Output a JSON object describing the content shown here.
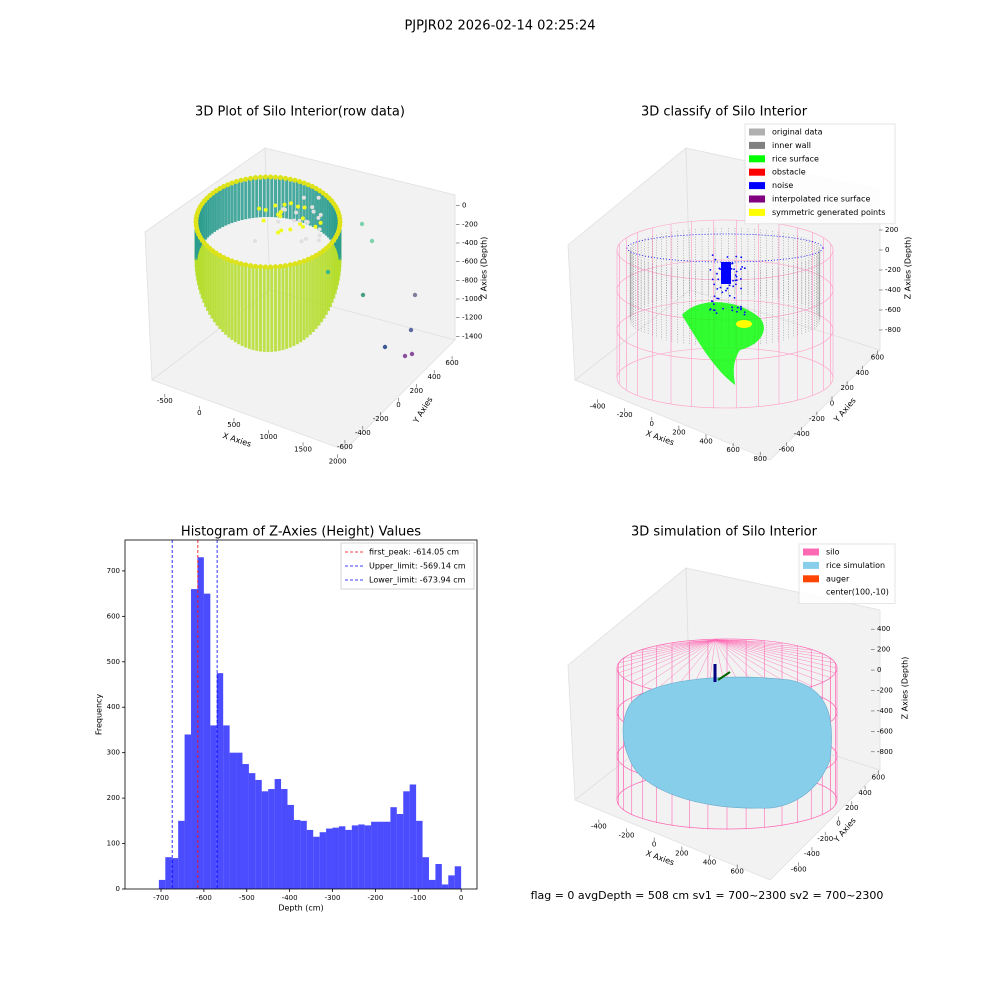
{
  "suptitle": "PJPJR02 2026-02-14 02:25:24",
  "footer": "flag = 0     avgDepth = 508 cm  sv1 = 700~2300  sv2 = 700~2300",
  "chart_data": [
    {
      "type": "scatter3d",
      "title": "3D Plot of Silo Interior(row data)",
      "xlabel": "X Axies",
      "ylabel": "Y Axies",
      "zlabel": "Z Axies (Depth)",
      "xlim": [
        -700,
        2150
      ],
      "ylim": [
        -700,
        700
      ],
      "zlim": [
        -1450,
        50
      ],
      "xticks": [
        -500,
        0,
        500,
        1000,
        1500,
        2000
      ],
      "yticks": [
        -600,
        -400,
        -200,
        0,
        200,
        400,
        600
      ],
      "zticks": [
        0,
        -200,
        -400,
        -600,
        -800,
        -1000,
        -1200,
        -1400
      ]
    },
    {
      "type": "scatter3d",
      "title": "3D classify of Silo Interior",
      "xlabel": "X Axies",
      "ylabel": "Y Axies",
      "zlabel": "Z Axies (Depth)",
      "xlim": [
        -500,
        850
      ],
      "ylim": [
        -700,
        700
      ],
      "zlim": [
        -900,
        300
      ],
      "xticks": [
        -400,
        -200,
        0,
        200,
        400,
        600,
        800
      ],
      "yticks": [
        -600,
        -400,
        -200,
        0,
        200,
        400,
        600
      ],
      "zticks": [
        200,
        0,
        -200,
        -400,
        -600,
        -800
      ],
      "legend": [
        {
          "name": "original data",
          "color": "#b0b0b0"
        },
        {
          "name": "inner wall",
          "color": "#808080"
        },
        {
          "name": "rice surface",
          "color": "#00ff00"
        },
        {
          "name": "obstacle",
          "color": "#ff0000"
        },
        {
          "name": "noise",
          "color": "#0000ff"
        },
        {
          "name": "interpolated rice surface",
          "color": "#800080"
        },
        {
          "name": "symmetric generated points",
          "color": "#ffff00"
        }
      ]
    },
    {
      "type": "histogram",
      "title": "Histogram of Z-Axies (Height) Values",
      "xlabel": "Depth (cm)",
      "ylabel": "Frequency",
      "color": "#0000ff",
      "bins": [
        -705,
        -690,
        -675,
        -660,
        -645,
        -630,
        -615,
        -600,
        -585,
        -570,
        -555,
        -540,
        -525,
        -510,
        -495,
        -480,
        -465,
        -450,
        -435,
        -420,
        -405,
        -390,
        -375,
        -360,
        -345,
        -330,
        -315,
        -300,
        -285,
        -270,
        -255,
        -240,
        -225,
        -210,
        -195,
        -180,
        -165,
        -150,
        -135,
        -120,
        -105,
        -90,
        -75,
        -60,
        -45,
        -30,
        -15,
        0
      ],
      "values": [
        20,
        70,
        68,
        150,
        340,
        660,
        730,
        650,
        360,
        475,
        360,
        300,
        300,
        275,
        255,
        240,
        215,
        220,
        242,
        220,
        185,
        152,
        150,
        130,
        115,
        125,
        133,
        135,
        138,
        130,
        140,
        142,
        140,
        148,
        148,
        148,
        180,
        165,
        215,
        230,
        150,
        70,
        20,
        55,
        10,
        30,
        50
      ],
      "xlim": [
        -784,
        37
      ],
      "ylim": [
        0,
        768
      ],
      "xticks": [
        -700,
        -600,
        -500,
        -400,
        -300,
        -200,
        -100,
        0
      ],
      "yticks": [
        0,
        100,
        200,
        300,
        400,
        500,
        600,
        700
      ],
      "lines": [
        {
          "label": "first_peak: -614.05 cm",
          "value": -614.05,
          "color": "#ff0000"
        },
        {
          "label": "Upper_limit: -569.14 cm",
          "value": -569.14,
          "color": "#0000ff"
        },
        {
          "label": "Lower_limit: -673.94 cm",
          "value": -673.94,
          "color": "#0000ff"
        }
      ],
      "legend_position": "upper right"
    },
    {
      "type": "scatter3d",
      "title": "3D simulation of Silo Interior",
      "xlabel": "X Axies",
      "ylabel": "Y Axies",
      "zlabel": "Z Axies (Depth)",
      "xlim": [
        -500,
        700
      ],
      "ylim": [
        -700,
        700
      ],
      "zlim": [
        -900,
        500
      ],
      "xticks": [
        -400,
        -200,
        0,
        200,
        400,
        600
      ],
      "yticks": [
        -600,
        -400,
        -200,
        0,
        200,
        400,
        600
      ],
      "zticks": [
        400,
        200,
        0,
        -200,
        -400,
        -600,
        -800
      ],
      "legend": [
        {
          "name": "silo",
          "color": "#ff69b4"
        },
        {
          "name": "rice simulation",
          "color": "#87ceeb"
        },
        {
          "name": "auger",
          "color": "#ff4500"
        },
        {
          "name": "center(100,-10)"
        }
      ]
    }
  ]
}
